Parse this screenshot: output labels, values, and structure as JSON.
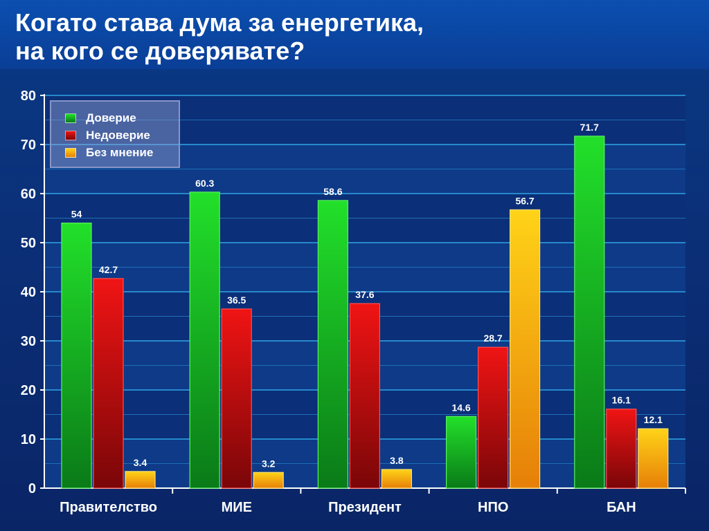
{
  "page": {
    "title_line1": "Когато става дума за енергетика,",
    "title_line2": "на кого се доверявате?"
  },
  "colors": {
    "background": "#0a2f78",
    "grid": "#2a9bdc",
    "trust": "#12c41a",
    "distrust": "#d40d10",
    "no_opinion": "#f5a810"
  },
  "chart_data": {
    "type": "bar",
    "title": "Когато става дума за енергетика, на кого се доверявате?",
    "xlabel": "",
    "ylabel": "",
    "ylim": [
      0,
      80
    ],
    "yticks": [
      0,
      10,
      20,
      30,
      40,
      50,
      60,
      70,
      80
    ],
    "grid": true,
    "legend_position": "top-left",
    "categories": [
      "Правителство",
      "МИЕ",
      "Президент",
      "НПО",
      "БАН"
    ],
    "series": [
      {
        "name": "Доверие",
        "color": "#12c41a",
        "values": [
          54,
          60.3,
          58.6,
          14.6,
          71.7
        ]
      },
      {
        "name": "Недоверие",
        "color": "#d40d10",
        "values": [
          42.7,
          36.5,
          37.6,
          28.7,
          16.1
        ]
      },
      {
        "name": "Без мнение",
        "color": "#f5a810",
        "values": [
          3.4,
          3.2,
          3.8,
          56.7,
          12.1
        ]
      }
    ]
  }
}
